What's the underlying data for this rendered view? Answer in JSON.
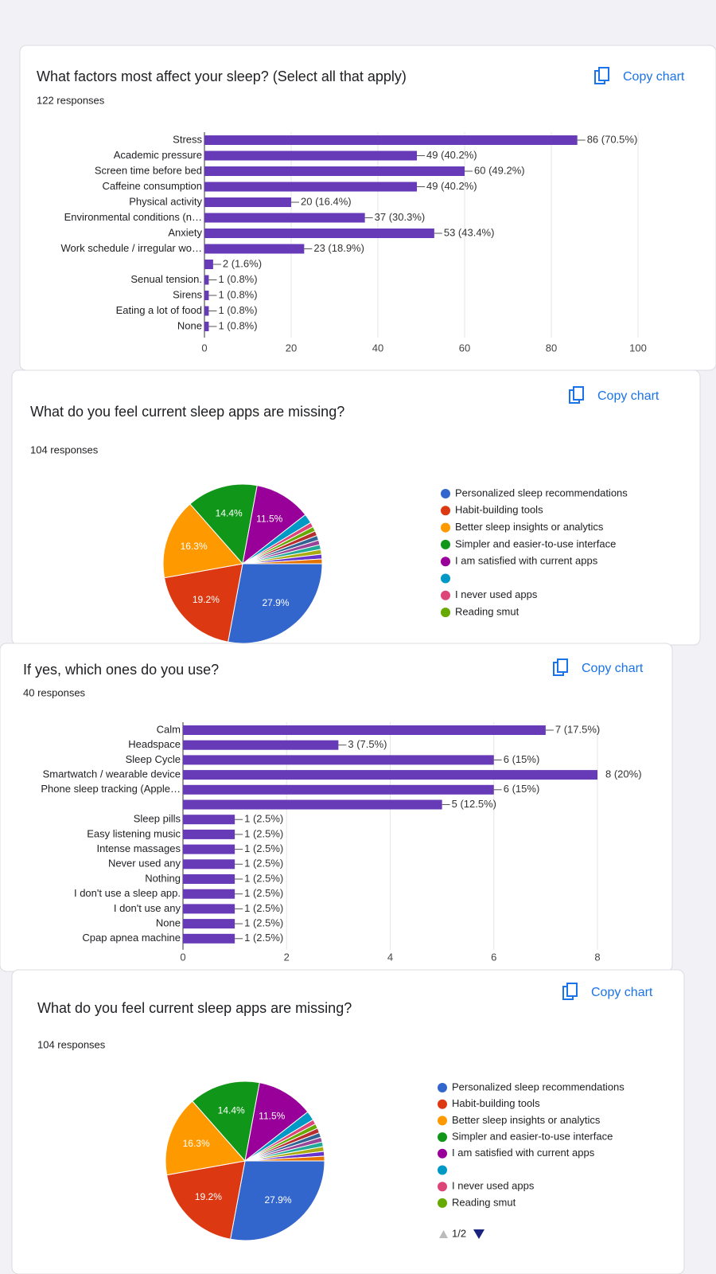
{
  "chart_data": [
    {
      "type": "bar",
      "title": "What factors most affect your sleep? (Select all that apply)",
      "subtitle": "122 responses",
      "button": "Copy chart",
      "categories": [
        "Stress",
        "Academic pressure",
        "Screen time before bed",
        "Caffeine consumption",
        "Physical activity",
        "Environmental conditions (n…",
        "Anxiety",
        "Work schedule / irregular wo…",
        null,
        "Senual tension.",
        "Sirens",
        "Eating a lot of food",
        "None"
      ],
      "values": [
        86,
        49,
        60,
        49,
        20,
        37,
        53,
        23,
        2,
        1,
        1,
        1,
        1
      ],
      "value_labels": [
        "86 (70.5%)",
        "49 (40.2%)",
        "60 (49.2%)",
        "49 (40.2%)",
        "20 (16.4%)",
        "37 (30.3%)",
        "53 (43.4%)",
        "23 (18.9%)",
        "2 (1.6%)",
        "1 (0.8%)",
        "1 (0.8%)",
        "1 (0.8%)",
        "1 (0.8%)"
      ],
      "color": "#673ab7",
      "xlim": [
        0,
        100
      ],
      "xticks": [
        0,
        20,
        40,
        60,
        80,
        100
      ],
      "grid": true
    },
    {
      "type": "pie",
      "title": "What do you feel current sleep apps are missing?",
      "subtitle": "104 responses",
      "button": "Copy chart",
      "categories": [
        "Personalized sleep recommendations",
        "Habit-building tools",
        "Better sleep insights or analytics",
        "Simpler and easier-to-use interface",
        "I am satisfied with current apps",
        null,
        "I never used apps",
        "Reading smut",
        null,
        null,
        null,
        null,
        null,
        null,
        null
      ],
      "values": [
        27.9,
        19.2,
        16.3,
        14.4,
        11.5,
        1.9,
        0.96,
        0.96,
        0.96,
        0.96,
        0.96,
        0.96,
        0.96,
        0.96,
        0.96
      ],
      "value_labels": [
        "27.9%",
        "19.2%",
        "16.3%",
        "14.4%",
        "11.5%",
        null,
        null,
        null,
        null,
        null,
        null,
        null,
        null,
        null,
        null
      ],
      "colors": [
        "#3366cc",
        "#dc3912",
        "#ff9900",
        "#109618",
        "#990099",
        "#0099c6",
        "#dd4477",
        "#66aa00",
        "#b82e2e",
        "#316395",
        "#994499",
        "#22aa99",
        "#aaaa11",
        "#6633cc",
        "#e67300"
      ]
    },
    {
      "type": "bar",
      "title": "If yes, which ones do you use?",
      "subtitle": "40 responses",
      "button": "Copy chart",
      "categories": [
        "Calm",
        "Headspace",
        "Sleep Cycle",
        "Smartwatch / wearable device",
        "Phone sleep tracking (Apple…",
        null,
        "Sleep pills",
        "Easy listening music",
        "Intense massages",
        "Never used any",
        "Nothing",
        "I don't use a sleep app.",
        "I don't use any",
        "None",
        "Cpap apnea machine"
      ],
      "values": [
        7,
        3,
        6,
        8,
        6,
        5,
        1,
        1,
        1,
        1,
        1,
        1,
        1,
        1,
        1
      ],
      "value_labels": [
        "7 (17.5%)",
        "3 (7.5%)",
        "6 (15%)",
        "8 (20%)",
        "6 (15%)",
        "5 (12.5%)",
        "1 (2.5%)",
        "1 (2.5%)",
        "1 (2.5%)",
        "1 (2.5%)",
        "1 (2.5%)",
        "1 (2.5%)",
        "1 (2.5%)",
        "1 (2.5%)",
        "1 (2.5%)"
      ],
      "color": "#673ab7",
      "xlim": [
        0,
        8
      ],
      "xticks": [
        0,
        2,
        4,
        6,
        8
      ],
      "grid": true
    },
    {
      "type": "pie",
      "title": "What do you feel current sleep apps are missing?",
      "subtitle": "104 responses",
      "button": "Copy chart",
      "legend_pager": "1/2",
      "categories": [
        "Personalized sleep recommendations",
        "Habit-building tools",
        "Better sleep insights or analytics",
        "Simpler and easier-to-use interface",
        "I am satisfied with current apps",
        null,
        "I never used apps",
        "Reading smut",
        null,
        null,
        null,
        null,
        null,
        null,
        null
      ],
      "values": [
        27.9,
        19.2,
        16.3,
        14.4,
        11.5,
        1.9,
        0.96,
        0.96,
        0.96,
        0.96,
        0.96,
        0.96,
        0.96,
        0.96,
        0.96
      ],
      "value_labels": [
        "27.9%",
        "19.2%",
        "16.3%",
        "14.4%",
        "11.5%",
        null,
        null,
        null,
        null,
        null,
        null,
        null,
        null,
        null,
        null
      ],
      "colors": [
        "#3366cc",
        "#dc3912",
        "#ff9900",
        "#109618",
        "#990099",
        "#0099c6",
        "#dd4477",
        "#66aa00",
        "#b82e2e",
        "#316395",
        "#994499",
        "#22aa99",
        "#aaaa11",
        "#6633cc",
        "#e67300"
      ]
    }
  ]
}
